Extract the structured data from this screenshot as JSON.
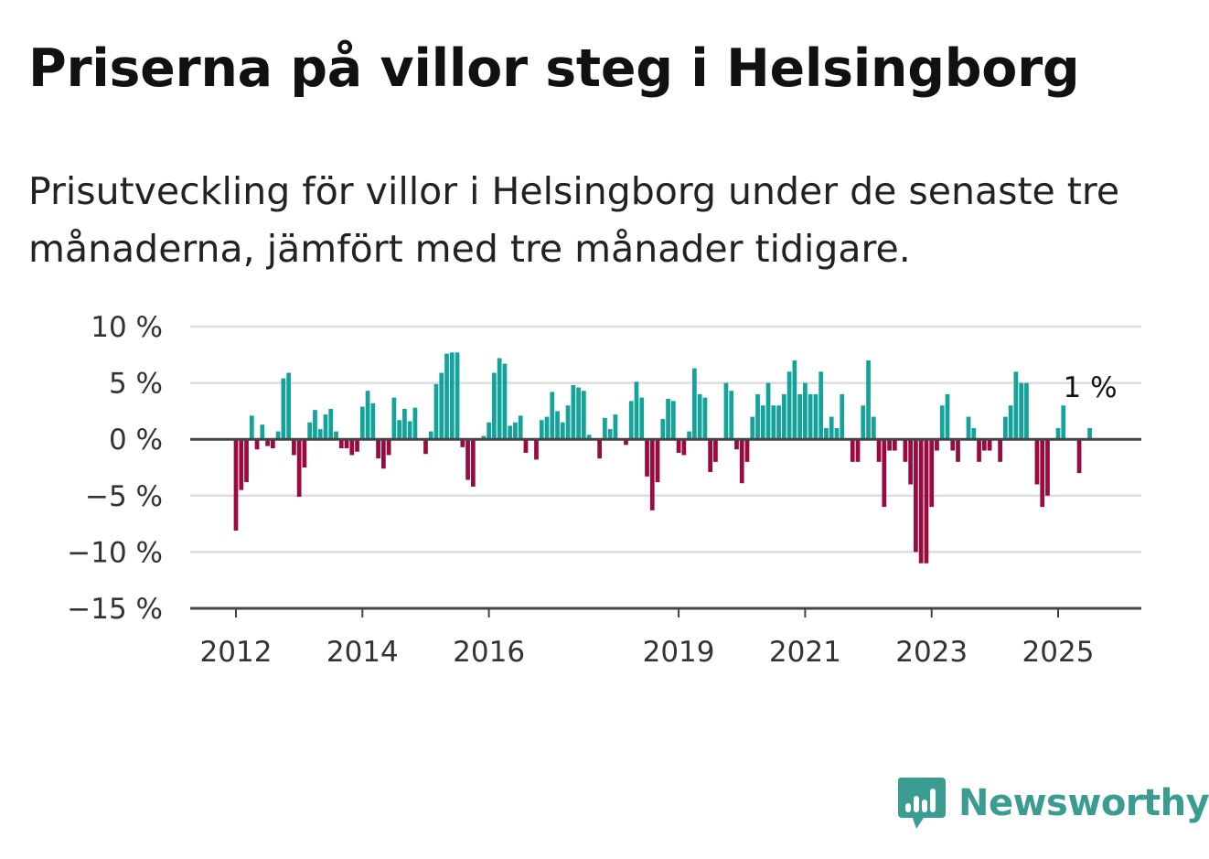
{
  "title": "Priserna på villor steg i Helsingborg",
  "subtitle": "Prisutveckling för villor i Helsingborg under de senaste tre månaderna, jämfört med tre månader tidigare.",
  "brand": "Newsworthy",
  "colors": {
    "positive": "#14a39a",
    "negative": "#9b0a3f",
    "brand": "#3b9d92",
    "grid": "#dddddd",
    "axis": "#444444"
  },
  "chart_data": {
    "type": "bar",
    "title": "Priserna på villor steg i Helsingborg",
    "xlabel": "",
    "ylabel": "",
    "ylim": [
      -15,
      10
    ],
    "grid": true,
    "legend": "none",
    "y_ticks": [
      10,
      5,
      0,
      -5,
      -10,
      -15
    ],
    "y_tick_labels": [
      "10 %",
      "5 %",
      "0 %",
      "−5 %",
      "−10 %",
      "−15 %"
    ],
    "x_ticks": [
      2012,
      2014,
      2016,
      2019,
      2021,
      2023,
      2025
    ],
    "x_tick_labels": [
      "2012",
      "2014",
      "2016",
      "2019",
      "2021",
      "2023",
      "2025"
    ],
    "x_start": 2012,
    "bars_per_year": 12,
    "values": [
      -8.1,
      -4.5,
      -3.8,
      2.1,
      -0.9,
      1.3,
      -0.6,
      -0.8,
      0.7,
      5.4,
      5.9,
      -1.4,
      -5.1,
      -2.5,
      1.5,
      2.6,
      0.9,
      2.2,
      2.7,
      0.7,
      -0.8,
      -0.8,
      -1.4,
      -1.1,
      2.9,
      4.3,
      3.2,
      -1.7,
      -2.6,
      -1.4,
      3.7,
      1.7,
      2.7,
      1.6,
      2.8,
      0.0,
      -1.3,
      0.7,
      4.9,
      5.9,
      7.6,
      7.7,
      7.7,
      -0.7,
      -3.6,
      -4.2,
      0.0,
      0.3,
      1.5,
      5.9,
      7.2,
      6.7,
      1.2,
      1.5,
      2.1,
      -1.2,
      0.0,
      -1.8,
      1.7,
      2.0,
      4.2,
      2.5,
      1.5,
      3.0,
      4.8,
      4.6,
      4.3,
      0.4,
      0.0,
      -1.7,
      1.9,
      0.9,
      2.2,
      0.0,
      -0.5,
      3.4,
      5.1,
      3.7,
      -3.3,
      -6.3,
      -3.8,
      1.8,
      3.6,
      3.4,
      -1.2,
      -1.4,
      0.7,
      6.3,
      4.0,
      3.7,
      -2.9,
      -2.0,
      0.0,
      5.0,
      4.3,
      -0.9,
      -3.9,
      -2.0,
      2.0,
      4.0,
      3.0,
      5.0,
      3.0,
      3.0,
      4.0,
      6.0,
      7.0,
      4.0,
      5.0,
      4.0,
      4.0,
      6.0,
      1.0,
      2.0,
      1.0,
      4.0,
      0.0,
      -2.0,
      -2.0,
      3.0,
      7.0,
      2.0,
      -2.0,
      -6.0,
      -1.0,
      -1.0,
      0.0,
      -2.0,
      -4.0,
      -10.0,
      -11.0,
      -11.0,
      -6.0,
      -1.0,
      3.0,
      4.0,
      -1.0,
      -2.0,
      0.0,
      2.0,
      1.0,
      -2.0,
      -1.0,
      -1.0,
      0.0,
      -2.0,
      2.0,
      3.0,
      6.0,
      5.0,
      5.0,
      0.0,
      -4.0,
      -6.0,
      -5.0,
      0.0,
      1.0,
      3.0,
      0.0,
      0.0,
      -3.0,
      0.0,
      1.0
    ],
    "last_value_label": "1 %"
  }
}
